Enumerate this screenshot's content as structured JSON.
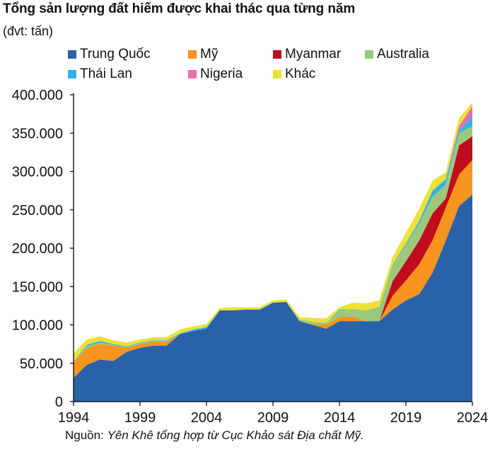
{
  "header": {
    "title": "Tổng sản lượng đất hiếm được khai thác qua từng năm",
    "subtitle": "(đvt: tấn)"
  },
  "footer": {
    "source_label": "Nguồn:",
    "source_text": "Yên Khê tổng hợp từ Cục Khảo sát Địa chất Mỹ."
  },
  "chart_data": {
    "type": "area",
    "stacked": true,
    "title": "Tổng sản lượng đất hiếm được khai thác qua từng năm",
    "subtitle": "(đvt: tấn)",
    "xlabel": "",
    "ylabel": "",
    "x": [
      1994,
      1995,
      1996,
      1997,
      1998,
      1999,
      2000,
      2001,
      2002,
      2003,
      2004,
      2005,
      2006,
      2007,
      2008,
      2009,
      2010,
      2011,
      2012,
      2013,
      2014,
      2015,
      2016,
      2017,
      2018,
      2019,
      2020,
      2021,
      2022,
      2023,
      2024
    ],
    "x_ticks": [
      1994,
      1999,
      2004,
      2009,
      2014,
      2019,
      2024
    ],
    "x_tick_labels": [
      "1994",
      "1999",
      "2004",
      "2009",
      "2014",
      "2019",
      "2024"
    ],
    "ylim": [
      0,
      400000
    ],
    "y_ticks": [
      0,
      50000,
      100000,
      150000,
      200000,
      250000,
      300000,
      350000,
      400000
    ],
    "y_tick_labels": [
      "0",
      "50.000",
      "100.000",
      "150.000",
      "200.000",
      "250.000",
      "300.000",
      "350.000",
      "400.000"
    ],
    "grid": false,
    "legend_position": "top",
    "series": [
      {
        "name": "Trung Quốc",
        "color": "#2a62aa",
        "values": [
          31000,
          48000,
          55000,
          53000,
          65000,
          70000,
          73000,
          73000,
          88000,
          92000,
          95000,
          119000,
          119000,
          120000,
          120000,
          129000,
          130000,
          105000,
          100000,
          95000,
          105000,
          105000,
          105000,
          105000,
          120000,
          132000,
          140000,
          168000,
          210000,
          255000,
          270000
        ]
      },
      {
        "name": "Mỹ",
        "color": "#f7941d",
        "values": [
          20000,
          22000,
          20000,
          20000,
          5000,
          5000,
          5000,
          5000,
          0,
          0,
          0,
          0,
          0,
          0,
          0,
          0,
          0,
          0,
          800,
          5500,
          5400,
          5900,
          0,
          0,
          18000,
          26000,
          39000,
          42000,
          43000,
          41000,
          45000
        ]
      },
      {
        "name": "Myanmar",
        "color": "#c00d1e",
        "values": [
          0,
          0,
          0,
          0,
          0,
          0,
          0,
          0,
          0,
          0,
          0,
          0,
          0,
          0,
          0,
          0,
          0,
          0,
          0,
          0,
          0,
          0,
          0,
          0,
          19000,
          25000,
          31000,
          35000,
          12000,
          38000,
          31000
        ]
      },
      {
        "name": "Australia",
        "color": "#9bc97c",
        "values": [
          2000,
          2000,
          2000,
          1000,
          1000,
          1000,
          1000,
          1000,
          0,
          0,
          0,
          0,
          0,
          0,
          0,
          0,
          0,
          2200,
          3200,
          2000,
          8000,
          10000,
          14000,
          19000,
          21000,
          21000,
          22000,
          22000,
          18000,
          16000,
          13000
        ]
      },
      {
        "name": "Thái Lan",
        "color": "#35b1e8",
        "values": [
          0,
          2000,
          2000,
          1000,
          1000,
          1000,
          1000,
          1000,
          1000,
          2000,
          2000,
          0,
          0,
          0,
          0,
          0,
          0,
          0,
          0,
          0,
          1500,
          0,
          0,
          0,
          1000,
          2000,
          3600,
          8000,
          7100,
          3600,
          13000
        ]
      },
      {
        "name": "Nigeria",
        "color": "#e86fab",
        "values": [
          0,
          0,
          0,
          0,
          0,
          0,
          0,
          0,
          0,
          0,
          0,
          0,
          0,
          0,
          0,
          0,
          0,
          0,
          0,
          0,
          0,
          0,
          0,
          0,
          0,
          0,
          0,
          0,
          0,
          6000,
          13000
        ]
      },
      {
        "name": "Khác",
        "color": "#ece235",
        "values": [
          10000,
          7000,
          6000,
          5000,
          5000,
          4000,
          4000,
          4000,
          5000,
          4000,
          4000,
          3000,
          4000,
          3000,
          3000,
          3000,
          3000,
          3000,
          5000,
          6000,
          3000,
          8000,
          9000,
          8000,
          10000,
          14000,
          16000,
          13000,
          9000,
          10000,
          5000
        ]
      }
    ]
  }
}
